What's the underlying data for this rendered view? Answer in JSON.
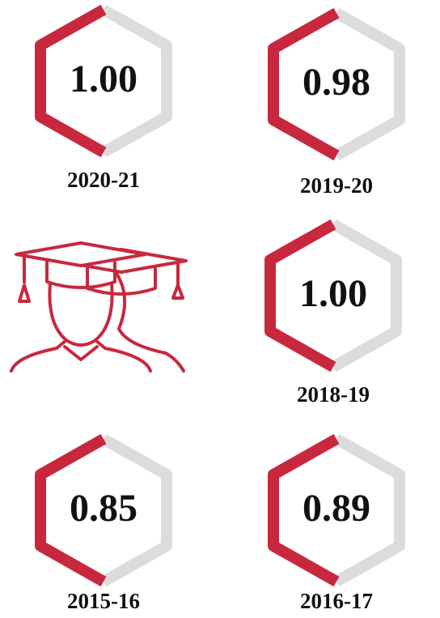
{
  "items": [
    {
      "value": "1.00",
      "label": "2020-21"
    },
    {
      "value": "0.98",
      "label": "2019-20"
    },
    {
      "value": "1.00",
      "label": "2018-19"
    },
    {
      "value": "0.85",
      "label": "2015-16"
    },
    {
      "value": "0.89",
      "label": "2016-17"
    }
  ]
}
